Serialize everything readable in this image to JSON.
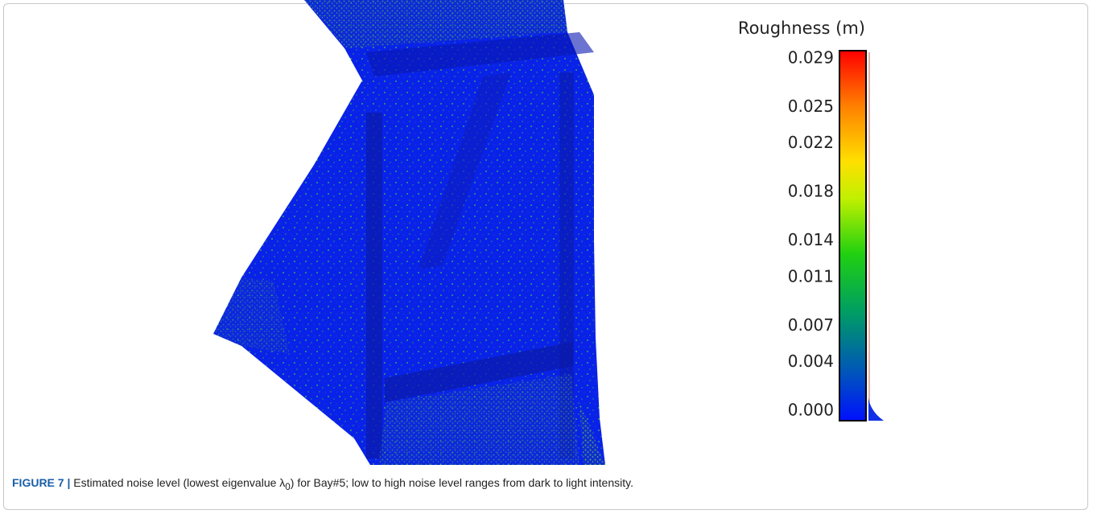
{
  "figure": {
    "colorbar": {
      "title": "Roughness (m)",
      "range": [
        0,
        0.029
      ],
      "ticks": [
        {
          "value": 0,
          "label": "0.000"
        },
        {
          "value": 0.004,
          "label": "0.004"
        },
        {
          "value": 0.007,
          "label": "0.007"
        },
        {
          "value": 0.011,
          "label": "0.011"
        },
        {
          "value": 0.014,
          "label": "0.014"
        },
        {
          "value": 0.018,
          "label": "0.018"
        },
        {
          "value": 0.022,
          "label": "0.022"
        },
        {
          "value": 0.025,
          "label": "0.025"
        },
        {
          "value": 0.029,
          "label": "0.029"
        }
      ]
    },
    "caption": {
      "label": "FIGURE 7 |",
      "text_before": "Estimated noise level (lowest eigenvalue λ",
      "subscript": "0",
      "text_after": ") for Bay#5; low to high noise level ranges from dark to light intensity."
    }
  }
}
